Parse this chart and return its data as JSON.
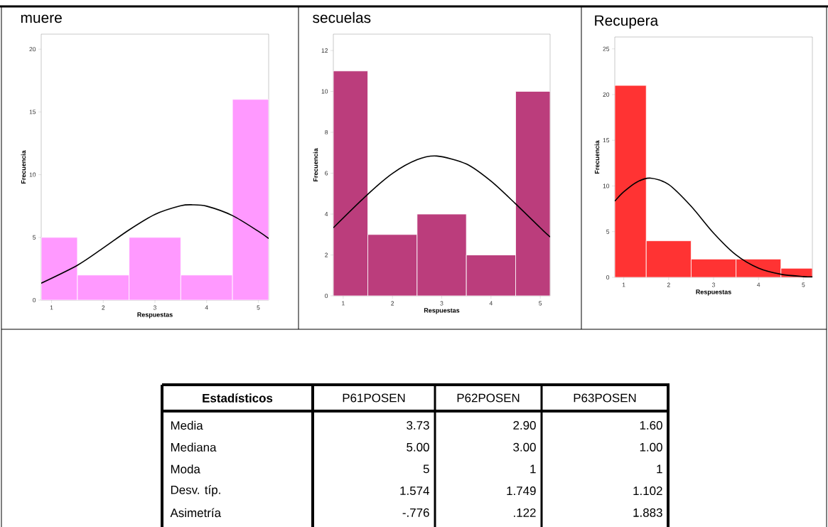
{
  "chart_data": [
    {
      "type": "histogram",
      "title": "muere",
      "xlabel": "Respuestas",
      "ylabel": "Frecuencia",
      "bins": [
        0.8,
        1.5,
        2.5,
        3.5,
        4.5,
        5.2
      ],
      "values": [
        5,
        2,
        5,
        2,
        16
      ],
      "color": "#ff99ff",
      "xlim": [
        0.8,
        5.2
      ],
      "xticks": [
        1,
        2,
        3,
        4,
        5
      ],
      "ylim": [
        0,
        21.2
      ],
      "yticks": [
        0,
        5,
        10,
        15,
        20
      ],
      "series": [
        {
          "type": "line",
          "color": "#000000",
          "x": [
            0.8,
            1.5,
            2,
            2.5,
            3,
            3.5,
            3.73,
            4,
            4.5,
            5,
            5.2
          ],
          "values": [
            1.35,
            2.78,
            4.16,
            5.6,
            6.83,
            7.52,
            7.6,
            7.49,
            6.74,
            5.49,
            4.91
          ]
        }
      ]
    },
    {
      "type": "histogram",
      "title": "secuelas",
      "xlabel": "Respuestas",
      "ylabel": "Frecuencia",
      "bins": [
        0.8,
        1.5,
        2.5,
        3.5,
        4.5,
        5.2
      ],
      "values": [
        11,
        3,
        4,
        2,
        10
      ],
      "color": "#bb3d7c",
      "xlim": [
        0.8,
        5.2
      ],
      "xticks": [
        1,
        2,
        3,
        4,
        5
      ],
      "ylim": [
        0,
        12.8
      ],
      "yticks": [
        0,
        2,
        4,
        6,
        8,
        10,
        12
      ],
      "series": [
        {
          "type": "line",
          "color": "#000000",
          "x": [
            0.8,
            1.5,
            2,
            2.5,
            2.9,
            3.5,
            4,
            4.5,
            5,
            5.2
          ],
          "values": [
            3.33,
            4.97,
            5.99,
            6.66,
            6.84,
            6.45,
            5.61,
            4.5,
            3.33,
            2.88
          ]
        }
      ]
    },
    {
      "type": "histogram",
      "title": "Recupera",
      "xlabel": "Respuestas",
      "ylabel": "Frecuencia",
      "bins": [
        0.8,
        1.5,
        2.5,
        3.5,
        4.5,
        5.2
      ],
      "values": [
        21,
        4,
        2,
        2,
        1
      ],
      "color": "#ff3333",
      "xlim": [
        0.8,
        5.2
      ],
      "xticks": [
        1,
        2,
        3,
        4,
        5
      ],
      "ylim": [
        0,
        26.3
      ],
      "yticks": [
        0,
        5,
        10,
        15,
        20,
        25
      ],
      "series": [
        {
          "type": "line",
          "color": "#000000",
          "x": [
            0.8,
            1,
            1.3,
            1.6,
            2,
            2.5,
            3,
            3.5,
            4,
            4.5,
            5,
            5.2
          ],
          "values": [
            8.34,
            9.36,
            10.45,
            10.86,
            10.16,
            7.78,
            4.85,
            2.46,
            1.01,
            0.34,
            0.09,
            0.05
          ]
        }
      ]
    },
    {
      "type": "other",
      "title": "Estadísticos",
      "categories": [
        "Media",
        "Mediana",
        "Moda",
        "Desv. típ.",
        "Asimetría"
      ],
      "series": [
        {
          "name": "P61POSEN",
          "values": [
            3.73,
            5.0,
            5,
            1.574,
            -0.776
          ],
          "value_labels": [
            "3.73",
            "5.00",
            "5",
            "1.574",
            "-.776"
          ]
        },
        {
          "name": "P62POSEN",
          "values": [
            2.9,
            3.0,
            1,
            1.749,
            0.122
          ],
          "value_labels": [
            "2.90",
            "3.00",
            "1",
            "1.749",
            ".122"
          ]
        },
        {
          "name": "P63POSEN",
          "values": [
            1.6,
            1.0,
            1,
            1.102,
            1.883
          ],
          "value_labels": [
            "1.60",
            "1.00",
            "1",
            "1.102",
            "1.883"
          ]
        }
      ]
    }
  ]
}
